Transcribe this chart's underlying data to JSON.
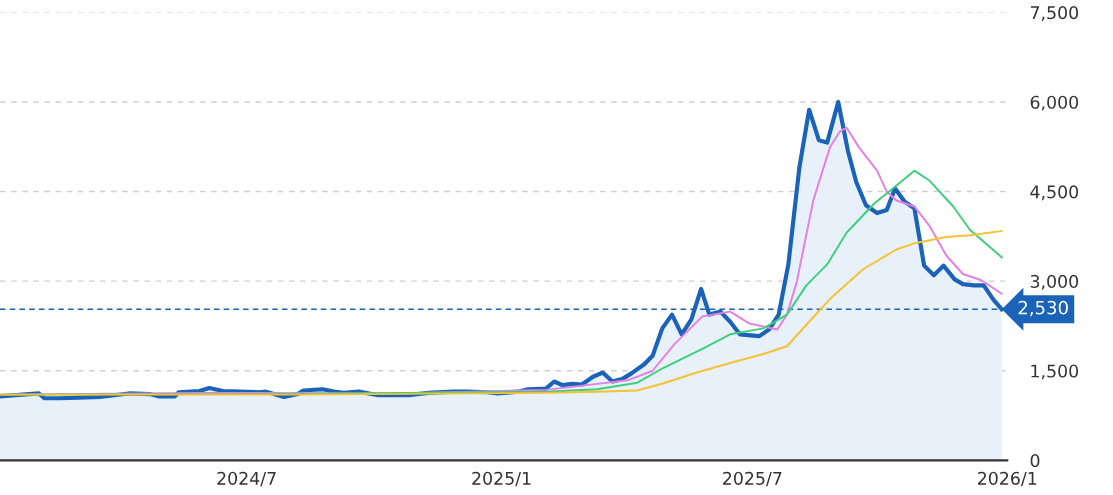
{
  "chart_data": {
    "type": "line",
    "xlim": [
      "2024-01-05",
      "2026-01-01"
    ],
    "xticks": [
      {
        "value": "2024-07-01",
        "label": "2024/7"
      },
      {
        "value": "2025-01-01",
        "label": "2025/1"
      },
      {
        "value": "2025-07-01",
        "label": "2025/7"
      },
      {
        "value": "2026-01-01",
        "label": "2026/1"
      }
    ],
    "ylim": [
      0,
      7500
    ],
    "yticks": [
      {
        "value": 0,
        "label": "0"
      },
      {
        "value": 1500,
        "label": "1,500"
      },
      {
        "value": 3000,
        "label": "3,000"
      },
      {
        "value": 4500,
        "label": "4,500"
      },
      {
        "value": 6000,
        "label": "6,000"
      },
      {
        "value": 7500,
        "label": "7,500"
      }
    ],
    "grid": "y",
    "legend": false,
    "marker": "none",
    "ref_lines": [
      {
        "axis": "y",
        "value": 2530,
        "label": "2,530",
        "color": "#1a63b8",
        "line_style": "dashed"
      }
    ],
    "series": [
      {
        "type": "area",
        "color": "#1a63b8",
        "x": [
          "2024-01-05",
          "2024-01-26",
          "2024-02-02",
          "2024-02-06",
          "2024-02-17",
          "2024-03-02",
          "2024-03-17",
          "2024-04-07",
          "2024-04-22",
          "2024-04-29",
          "2024-05-10",
          "2024-05-13",
          "2024-05-28",
          "2024-06-04",
          "2024-06-14",
          "2024-07-10",
          "2024-07-15",
          "2024-07-28",
          "2024-08-07",
          "2024-08-11",
          "2024-08-25",
          "2024-09-02",
          "2024-09-09",
          "2024-09-20",
          "2024-10-04",
          "2024-10-26",
          "2024-11-09",
          "2024-11-27",
          "2024-12-08",
          "2024-12-22",
          "2024-12-29",
          "2025-01-13",
          "2025-01-20",
          "2025-02-02",
          "2025-02-08",
          "2025-02-14",
          "2025-02-21",
          "2025-02-28",
          "2025-03-08",
          "2025-03-15",
          "2025-03-22",
          "2025-03-29",
          "2025-04-05",
          "2025-04-14",
          "2025-04-20",
          "2025-04-27",
          "2025-05-04",
          "2025-05-11",
          "2025-05-18",
          "2025-05-25",
          "2025-05-31",
          "2025-06-08",
          "2025-06-15",
          "2025-06-22",
          "2025-07-06",
          "2025-07-13",
          "2025-07-20",
          "2025-07-27",
          "2025-08-04",
          "2025-08-11",
          "2025-08-18",
          "2025-08-24",
          "2025-09-01",
          "2025-09-08",
          "2025-09-14",
          "2025-09-21",
          "2025-09-29",
          "2025-10-06",
          "2025-10-12",
          "2025-10-19",
          "2025-10-26",
          "2025-11-02",
          "2025-11-09",
          "2025-11-16",
          "2025-11-24",
          "2025-11-30",
          "2025-12-08",
          "2025-12-15",
          "2025-12-22",
          "2025-12-28"
        ],
        "values": [
          1070,
          1110,
          1120,
          1040,
          1040,
          1050,
          1060,
          1120,
          1110,
          1070,
          1070,
          1140,
          1160,
          1210,
          1160,
          1140,
          1150,
          1060,
          1110,
          1170,
          1190,
          1150,
          1130,
          1150,
          1090,
          1090,
          1130,
          1150,
          1150,
          1140,
          1120,
          1150,
          1190,
          1200,
          1320,
          1260,
          1280,
          1270,
          1400,
          1470,
          1320,
          1360,
          1460,
          1610,
          1750,
          2210,
          2440,
          2110,
          2360,
          2870,
          2440,
          2490,
          2320,
          2110,
          2080,
          2190,
          2440,
          3280,
          4910,
          5870,
          5360,
          5320,
          6000,
          5180,
          4660,
          4270,
          4140,
          4190,
          4550,
          4330,
          4220,
          3260,
          3100,
          3260,
          3030,
          2950,
          2930,
          2930,
          2690,
          2530
        ]
      },
      {
        "color": "#e57fe3",
        "x": [
          "2024-01-05",
          "2024-05-28",
          "2024-10-18",
          "2025-02-02",
          "2025-03-11",
          "2025-04-02",
          "2025-04-20",
          "2025-05-06",
          "2025-05-26",
          "2025-06-15",
          "2025-06-29",
          "2025-07-19",
          "2025-07-26",
          "2025-08-02",
          "2025-08-14",
          "2025-08-26",
          "2025-09-02",
          "2025-09-07",
          "2025-09-16",
          "2025-09-29",
          "2025-10-06",
          "2025-10-13",
          "2025-10-26",
          "2025-11-06",
          "2025-11-18",
          "2025-11-30",
          "2025-12-13",
          "2025-12-28"
        ],
        "values": [
          1100,
          1130,
          1120,
          1180,
          1280,
          1340,
          1500,
          1950,
          2410,
          2490,
          2290,
          2190,
          2440,
          2980,
          4350,
          5240,
          5500,
          5570,
          5240,
          4850,
          4500,
          4350,
          4250,
          3920,
          3430,
          3120,
          3020,
          2790
        ]
      },
      {
        "color": "#3ecf7c",
        "x": [
          "2024-01-05",
          "2024-08-07",
          "2025-02-03",
          "2025-03-11",
          "2025-04-09",
          "2025-04-28",
          "2025-05-27",
          "2025-06-15",
          "2025-07-09",
          "2025-07-26",
          "2025-08-09",
          "2025-08-24",
          "2025-09-07",
          "2025-09-27",
          "2025-10-13",
          "2025-10-26",
          "2025-11-06",
          "2025-11-23",
          "2025-12-05",
          "2025-12-28"
        ],
        "values": [
          1100,
          1110,
          1150,
          1190,
          1300,
          1550,
          1880,
          2110,
          2210,
          2440,
          2930,
          3280,
          3810,
          4300,
          4600,
          4850,
          4680,
          4250,
          3860,
          3400
        ]
      },
      {
        "color": "#f4c232",
        "x": [
          "2024-01-05",
          "2024-08-07",
          "2025-02-03",
          "2025-03-11",
          "2025-04-09",
          "2025-04-28",
          "2025-05-22",
          "2025-06-15",
          "2025-07-09",
          "2025-07-26",
          "2025-08-09",
          "2025-08-26",
          "2025-09-19",
          "2025-10-13",
          "2025-10-27",
          "2025-11-18",
          "2025-12-05",
          "2025-12-28"
        ],
        "values": [
          1100,
          1100,
          1130,
          1150,
          1170,
          1290,
          1470,
          1630,
          1780,
          1910,
          2270,
          2700,
          3200,
          3530,
          3640,
          3740,
          3770,
          3840
        ]
      }
    ]
  }
}
